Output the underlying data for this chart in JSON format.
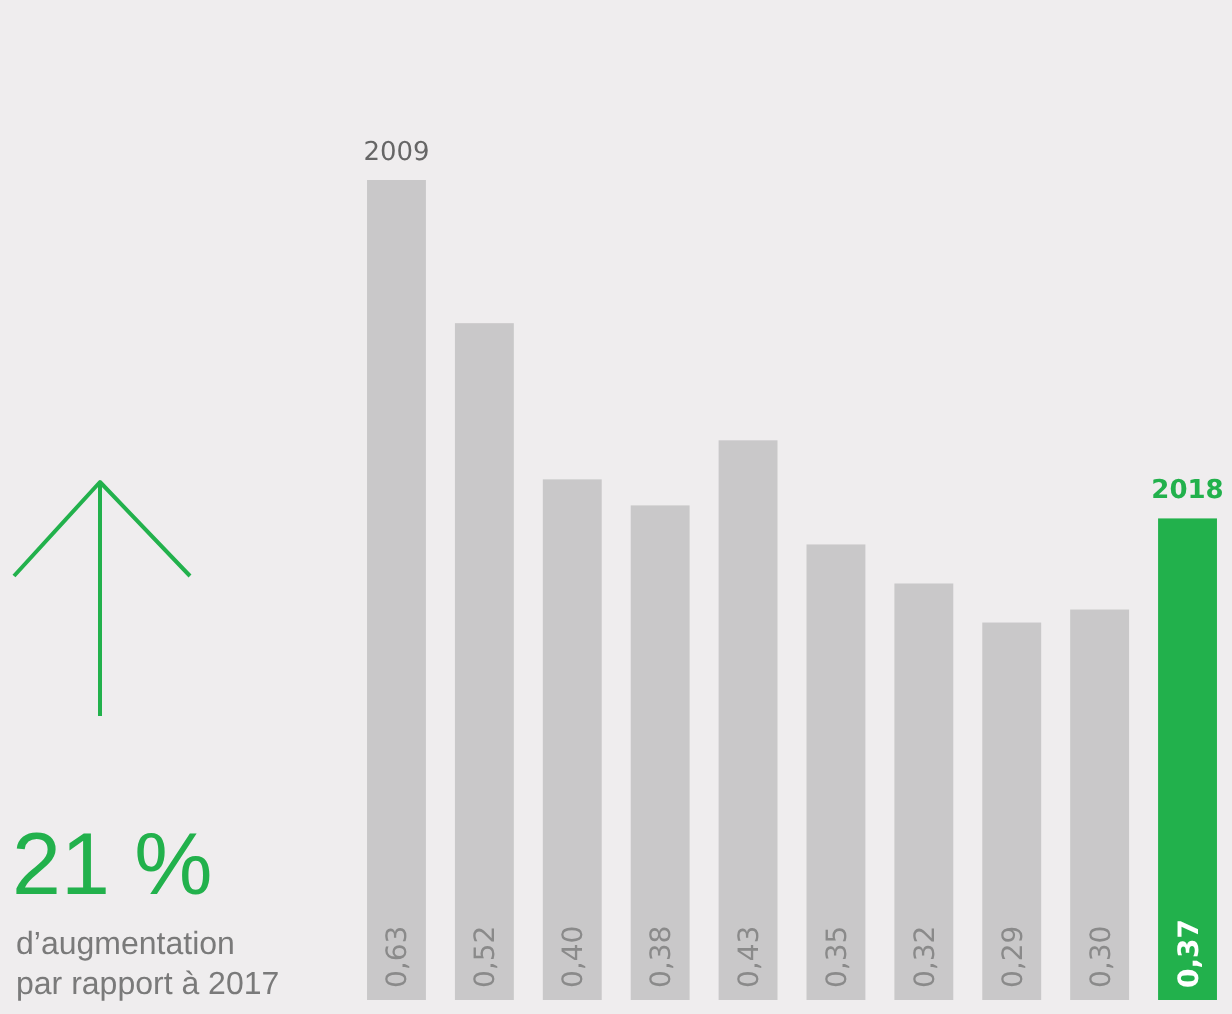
{
  "chart_data": {
    "type": "bar",
    "categories": [
      "2009",
      null,
      null,
      null,
      null,
      null,
      null,
      null,
      null,
      "2018"
    ],
    "values": [
      0.63,
      0.52,
      0.4,
      0.38,
      0.43,
      0.35,
      0.32,
      0.29,
      0.3,
      0.37
    ],
    "value_labels": [
      "0,63",
      "0,52",
      "0,40",
      "0,38",
      "0,43",
      "0,35",
      "0,32",
      "0,29",
      "0,30",
      "0,37"
    ],
    "colors": [
      "#c9c8c9",
      "#c9c8c9",
      "#c9c8c9",
      "#c9c8c9",
      "#c9c8c9",
      "#c9c8c9",
      "#c9c8c9",
      "#c9c8c9",
      "#c9c8c9",
      "#22b14c"
    ],
    "annotations": [
      "21 %",
      "d’augmentation\npar rapport à 2017"
    ]
  }
}
